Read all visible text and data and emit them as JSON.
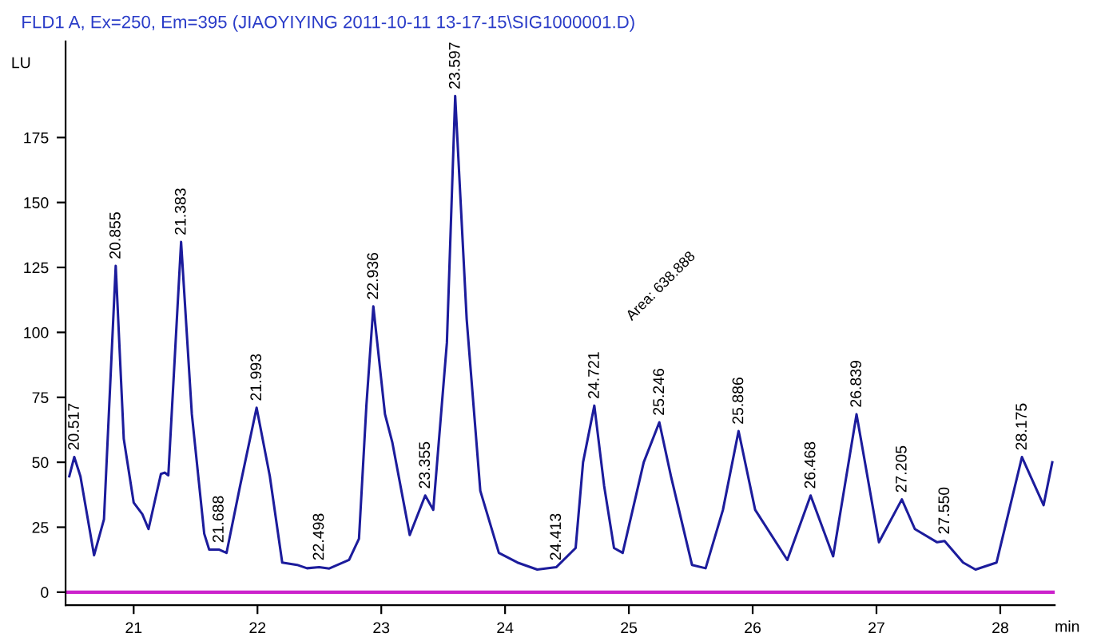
{
  "chart_data": {
    "type": "line",
    "title": "FLD1 A, Ex=250, Em=395 (JIAOYIYING 2011-10-11 13-17-15\\SIG1000001.D)",
    "xlabel": "min",
    "ylabel": "LU",
    "series": [
      {
        "color": "#1c1c9c",
        "x": [
          20.48,
          20.52,
          20.57,
          20.68,
          20.76,
          20.855,
          20.92,
          21.0,
          21.07,
          21.12,
          21.22,
          21.25,
          21.28,
          21.383,
          21.47,
          21.57,
          21.61,
          21.688,
          21.75,
          21.86,
          21.993,
          22.1,
          22.2,
          22.32,
          22.4,
          22.498,
          22.58,
          22.74,
          22.82,
          22.88,
          22.936,
          23.03,
          23.09,
          23.23,
          23.355,
          23.42,
          23.53,
          23.597,
          23.69,
          23.8,
          23.95,
          24.1,
          24.26,
          24.413,
          24.57,
          24.63,
          24.721,
          24.8,
          24.88,
          24.95,
          25.12,
          25.246,
          25.34,
          25.51,
          25.62,
          25.76,
          25.886,
          26.02,
          26.28,
          26.468,
          26.65,
          26.839,
          27.02,
          27.205,
          27.31,
          27.49,
          27.55,
          27.7,
          27.8,
          27.97,
          28.175,
          28.35,
          28.42
        ],
        "values": [
          44.6,
          52,
          44.6,
          14.2,
          28,
          125.6,
          59,
          34.5,
          30,
          24.3,
          45.5,
          46,
          45,
          134.8,
          68.5,
          22.5,
          16.4,
          16.4,
          15.1,
          41,
          71,
          44.6,
          11.4,
          10.5,
          9.2,
          9.6,
          9.1,
          12.4,
          20.6,
          72,
          110,
          68.5,
          57.5,
          22,
          37.2,
          31.7,
          96,
          191,
          105,
          39,
          15.1,
          11.4,
          8.7,
          9.6,
          17,
          50,
          71.8,
          41,
          17,
          15.1,
          50,
          65.4,
          44.6,
          10.5,
          9.2,
          31.7,
          62,
          31.7,
          12.4,
          37.2,
          13.8,
          68.5,
          19.2,
          35.7,
          24.3,
          19.2,
          19.7,
          11.4,
          8.7,
          11.4,
          52,
          33.5,
          50
        ]
      }
    ],
    "xlim": [
      20.45,
      28.44
    ],
    "ylim": [
      -5,
      212
    ],
    "xticks": [
      21,
      22,
      23,
      24,
      25,
      26,
      27,
      28
    ],
    "yticks": [
      0,
      25,
      50,
      75,
      100,
      125,
      150,
      175
    ],
    "ref_lines": [
      {
        "axis": "y",
        "value": 0,
        "color": "#cc22cc"
      }
    ],
    "annotations": [
      {
        "text": "20.517",
        "x": 20.52,
        "y": 52
      },
      {
        "text": "20.855",
        "x": 20.855,
        "y": 125.6
      },
      {
        "text": "21.383",
        "x": 21.383,
        "y": 134.8
      },
      {
        "text": "21.688",
        "x": 21.688,
        "y": 16.4
      },
      {
        "text": "21.993",
        "x": 21.993,
        "y": 71
      },
      {
        "text": "22.498",
        "x": 22.498,
        "y": 9.6
      },
      {
        "text": "22.936",
        "x": 22.936,
        "y": 110
      },
      {
        "text": "23.355",
        "x": 23.355,
        "y": 37.2
      },
      {
        "text": "23.597",
        "x": 23.597,
        "y": 191
      },
      {
        "text": "24.413",
        "x": 24.413,
        "y": 9.6
      },
      {
        "text": "24.721",
        "x": 24.721,
        "y": 71.8
      },
      {
        "text": "25.246",
        "x": 25.246,
        "y": 65.4
      },
      {
        "text": "25.886",
        "x": 25.886,
        "y": 62
      },
      {
        "text": "26.468",
        "x": 26.468,
        "y": 37.2
      },
      {
        "text": "26.839",
        "x": 26.839,
        "y": 68.5
      },
      {
        "text": "27.205",
        "x": 27.205,
        "y": 35.7
      },
      {
        "text": "27.550",
        "x": 27.55,
        "y": 19.7
      },
      {
        "text": "28.175",
        "x": 28.175,
        "y": 52
      },
      "Area: 638.888"
    ],
    "grid": false,
    "legend": false,
    "marker": "none",
    "line_style": "solid"
  }
}
